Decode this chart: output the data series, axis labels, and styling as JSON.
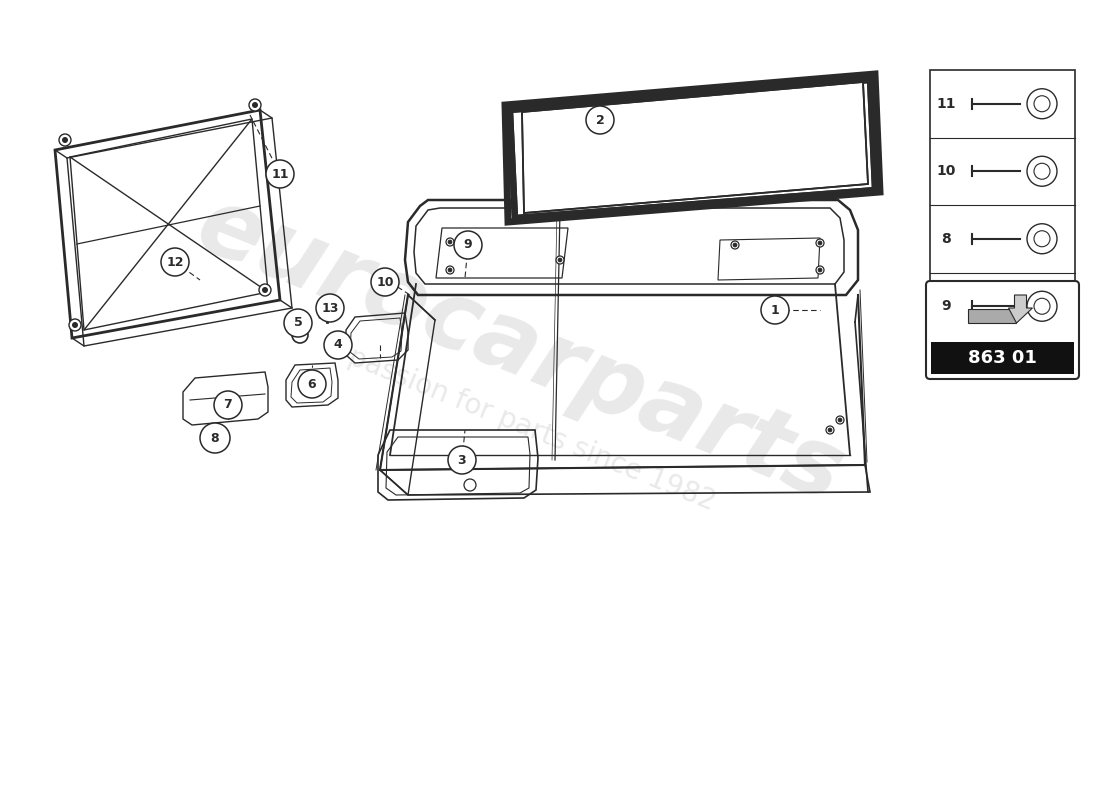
{
  "bg_color": "#ffffff",
  "line_color": "#2a2a2a",
  "part_code": "863 01",
  "watermark_text": "eurocarparts",
  "watermark_subtext": "a passion for parts since 1982",
  "legend_items": [
    "11",
    "10",
    "8",
    "9"
  ]
}
